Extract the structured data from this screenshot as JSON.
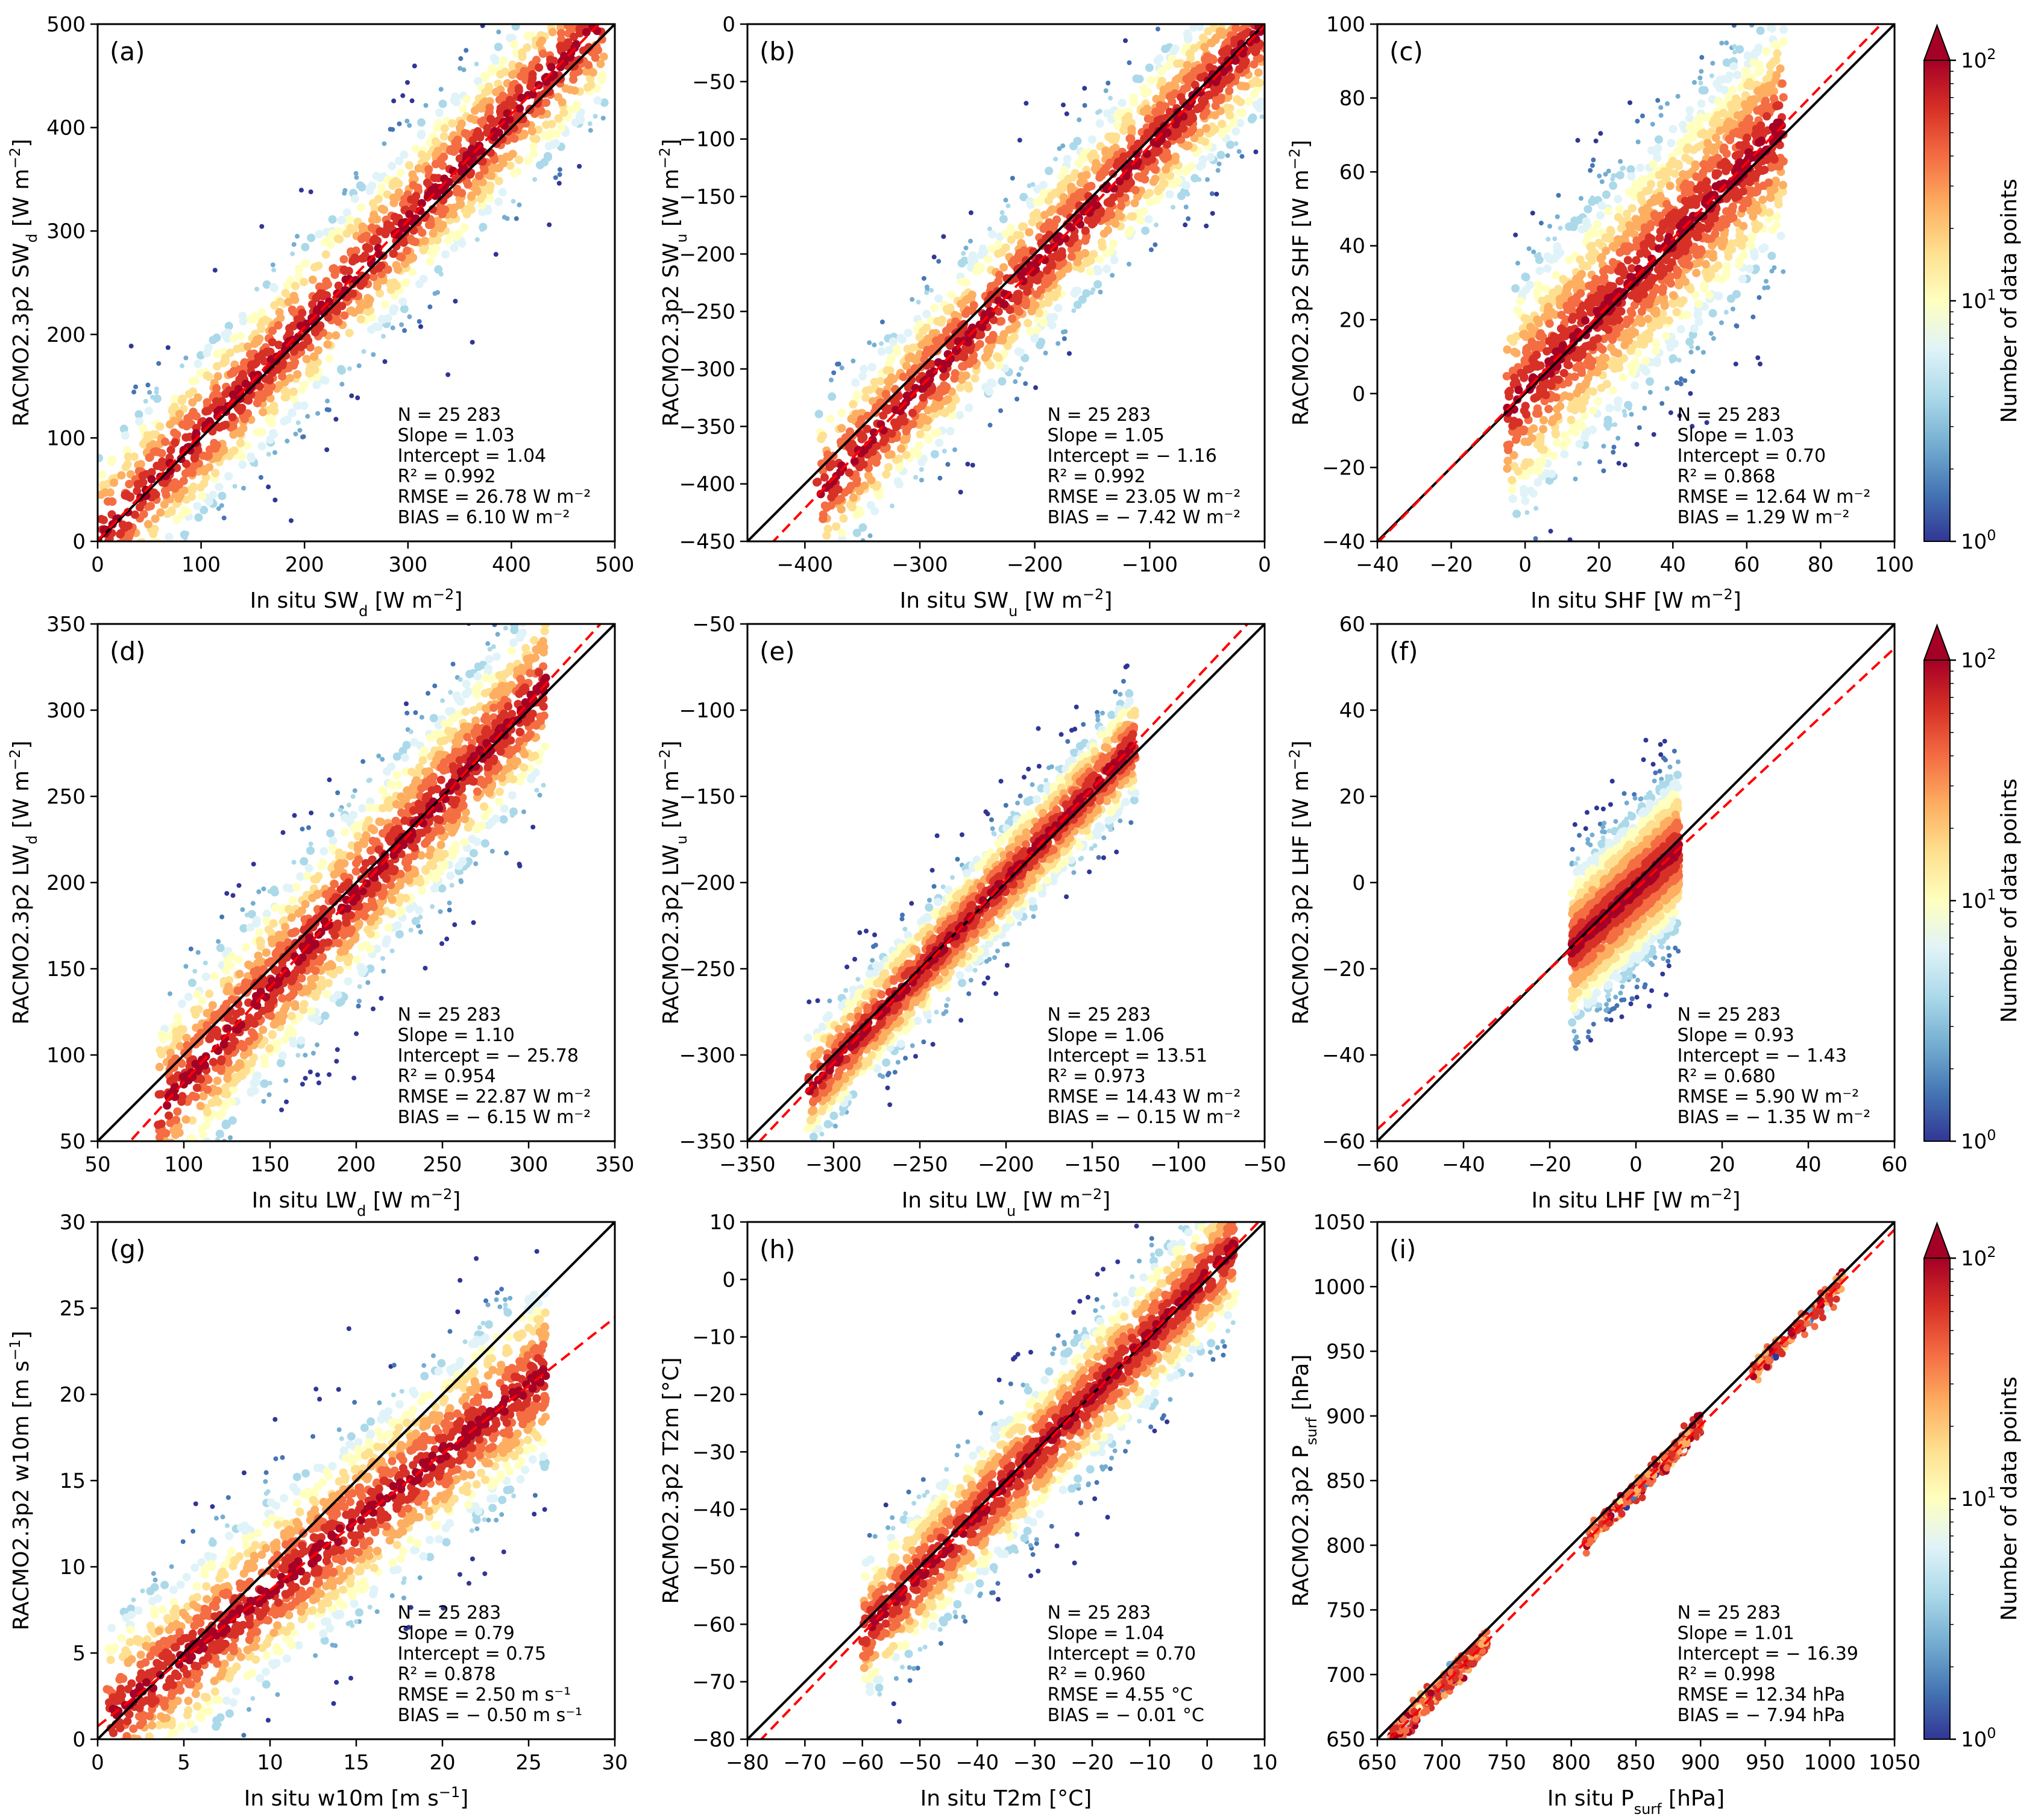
{
  "figure": {
    "y_label_prefix": "RACMO2.3p2",
    "x_label_prefix": "In situ"
  },
  "colorbar": {
    "label": "Number of data points",
    "scale": "log",
    "range": [
      1,
      100
    ],
    "ticks": [
      "10^0",
      "10^1",
      "10^2"
    ],
    "extend": "max",
    "colormap": [
      "#313695",
      "#4575b4",
      "#74add1",
      "#abd9e9",
      "#e0f3f8",
      "#ffffbf",
      "#fee090",
      "#fdae61",
      "#f46d43",
      "#d73027",
      "#a50026"
    ]
  },
  "line_styles": {
    "identity_line_color": "#000000",
    "fit_line_color": "#ff0000"
  },
  "chart_data": [
    {
      "type": "scatter",
      "panel": "(a)",
      "variable": "SWd",
      "xlabel": "In situ SW_d [W m^-2]",
      "ylabel": "RACMO2.3p2 SW_d [W m^-2]",
      "xlim": [
        0,
        500
      ],
      "ylim": [
        0,
        500
      ],
      "xticks": [
        0,
        100,
        200,
        300,
        400,
        500
      ],
      "yticks": [
        0,
        100,
        200,
        300,
        400,
        500
      ],
      "stats": {
        "N": "25 283",
        "slope": 1.03,
        "intercept": 1.04,
        "r2": 0.992,
        "rmse": "26.78 W m^-2",
        "bias": "6.10 W m^-2"
      },
      "stats_lines": [
        "N = 25 283",
        "Slope = 1.03",
        "Intercept = 1.04",
        "R² = 0.992",
        "RMSE = 26.78 W m⁻²",
        "BIAS = 6.10 W m⁻²"
      ],
      "cloud": {
        "xmin": 0,
        "xmax": 490,
        "spread": 45,
        "dense_max": 150
      }
    },
    {
      "type": "scatter",
      "panel": "(b)",
      "variable": "SWu",
      "xlabel": "In situ SW_u [W m^-2]",
      "ylabel": "RACMO2.3p2 SW_u [W m^-2]",
      "xlim": [
        -450,
        0
      ],
      "ylim": [
        -450,
        0
      ],
      "xticks": [
        -400,
        -300,
        -200,
        -100,
        0
      ],
      "yticks": [
        -450,
        -400,
        -350,
        -300,
        -250,
        -200,
        -150,
        -100,
        -50,
        0
      ],
      "stats": {
        "N": "25 283",
        "slope": 1.05,
        "intercept": -1.16,
        "r2": 0.992,
        "rmse": "23.05 W m^-2",
        "bias": "-7.42 W m^-2"
      },
      "stats_lines": [
        "N = 25 283",
        "Slope = 1.05",
        "Intercept = − 1.16",
        "R² = 0.992",
        "RMSE = 23.05 W m⁻²",
        "BIAS = − 7.42 W m⁻²"
      ],
      "cloud": {
        "xmin": -390,
        "xmax": 0,
        "spread": 40,
        "dense_max": -60
      }
    },
    {
      "type": "scatter",
      "panel": "(c)",
      "variable": "SHF",
      "xlabel": "In situ SHF [W m^-2]",
      "ylabel": "RACMO2.3p2 SHF [W m^-2]",
      "xlim": [
        -40,
        100
      ],
      "ylim": [
        -40,
        100
      ],
      "xticks": [
        -40,
        -20,
        0,
        20,
        40,
        60,
        80,
        100
      ],
      "yticks": [
        -40,
        -20,
        0,
        20,
        40,
        60,
        80,
        100
      ],
      "stats": {
        "N": "25 283",
        "slope": 1.03,
        "intercept": 0.7,
        "r2": 0.868,
        "rmse": "12.64 W m^-2",
        "bias": "1.29 W m^-2"
      },
      "stats_lines": [
        "N = 25 283",
        "Slope = 1.03",
        "Intercept = 0.70",
        "R² = 0.868",
        "RMSE = 12.64 W m⁻²",
        "BIAS = 1.29 W m⁻²"
      ],
      "cloud": {
        "xmin": -5,
        "xmax": 70,
        "spread": 18,
        "dense_max": 30
      }
    },
    {
      "type": "scatter",
      "panel": "(d)",
      "variable": "LWd",
      "xlabel": "In situ LW_d [W m^-2]",
      "ylabel": "RACMO2.3p2 LW_d [W m^-2]",
      "xlim": [
        50,
        350
      ],
      "ylim": [
        50,
        350
      ],
      "xticks": [
        50,
        100,
        150,
        200,
        250,
        300,
        350
      ],
      "yticks": [
        50,
        100,
        150,
        200,
        250,
        300,
        350
      ],
      "stats": {
        "N": "25 283",
        "slope": 1.1,
        "intercept": -25.78,
        "r2": 0.954,
        "rmse": "22.87 W m^-2",
        "bias": "-6.15 W m^-2"
      },
      "stats_lines": [
        "N = 25 283",
        "Slope = 1.10",
        "Intercept = − 25.78",
        "R² = 0.954",
        "RMSE = 22.87 W m⁻²",
        "BIAS = − 6.15 W m⁻²"
      ],
      "cloud": {
        "xmin": 85,
        "xmax": 310,
        "spread": 30,
        "dense_max": 300
      }
    },
    {
      "type": "scatter",
      "panel": "(e)",
      "variable": "LWu",
      "xlabel": "In situ LW_u [W m^-2]",
      "ylabel": "RACMO2.3p2 LW_u [W m^-2]",
      "xlim": [
        -350,
        -50
      ],
      "ylim": [
        -350,
        -50
      ],
      "xticks": [
        -350,
        -300,
        -250,
        -200,
        -150,
        -100,
        -50
      ],
      "yticks": [
        -350,
        -300,
        -250,
        -200,
        -150,
        -100,
        -50
      ],
      "stats": {
        "N": "25 283",
        "slope": 1.06,
        "intercept": 13.51,
        "r2": 0.973,
        "rmse": "14.43 W m^-2",
        "bias": "-0.15 W m^-2"
      },
      "stats_lines": [
        "N = 25 283",
        "Slope = 1.06",
        "Intercept = 13.51",
        "R² = 0.973",
        "RMSE = 14.43 W m⁻²",
        "BIAS = − 0.15 W m⁻²"
      ],
      "cloud": {
        "xmin": -315,
        "xmax": -125,
        "spread": 18,
        "dense_max": -170
      }
    },
    {
      "type": "scatter",
      "panel": "(f)",
      "variable": "LHF",
      "xlabel": "In situ LHF [W m^-2]",
      "ylabel": "RACMO2.3p2 LHF [W m^-2]",
      "xlim": [
        -60,
        60
      ],
      "ylim": [
        -60,
        60
      ],
      "xticks": [
        -60,
        -40,
        -20,
        0,
        20,
        40,
        60
      ],
      "yticks": [
        -60,
        -40,
        -20,
        0,
        20,
        40,
        60
      ],
      "stats": {
        "N": "25 283",
        "slope": 0.93,
        "intercept": -1.43,
        "r2": 0.68,
        "rmse": "5.90 W m^-2",
        "bias": "-1.35 W m^-2"
      },
      "stats_lines": [
        "N = 25 283",
        "Slope = 0.93",
        "Intercept = − 1.43",
        "R² = 0.680",
        "RMSE = 5.90 W m⁻²",
        "BIAS = − 1.35 W m⁻²"
      ],
      "cloud": {
        "xmin": -15,
        "xmax": 10,
        "spread": 10,
        "dense_max": 5
      }
    },
    {
      "type": "scatter",
      "panel": "(g)",
      "variable": "w10m",
      "xlabel": "In situ w10m [m s^-1]",
      "ylabel": "RACMO2.3p2 w10m [m s^-1]",
      "xlim": [
        0,
        30
      ],
      "ylim": [
        0,
        30
      ],
      "xticks": [
        0,
        5,
        10,
        15,
        20,
        25,
        30
      ],
      "yticks": [
        0,
        5,
        10,
        15,
        20,
        25,
        30
      ],
      "stats": {
        "N": "25 283",
        "slope": 0.79,
        "intercept": 0.75,
        "r2": 0.878,
        "rmse": "2.50 m s^-1",
        "bias": "-0.50 m s^-1"
      },
      "stats_lines": [
        "N = 25 283",
        "Slope = 0.79",
        "Intercept = 0.75",
        "R² = 0.878",
        "RMSE = 2.50 m s⁻¹",
        "BIAS = − 0.50 m s⁻¹"
      ],
      "cloud": {
        "xmin": 0.5,
        "xmax": 26,
        "spread": 3,
        "dense_max": 11
      }
    },
    {
      "type": "scatter",
      "panel": "(h)",
      "variable": "T2m",
      "xlabel": "In situ T2m [°C]",
      "ylabel": "RACMO2.3p2 T2m [°C]",
      "xlim": [
        -80,
        10
      ],
      "ylim": [
        -80,
        10
      ],
      "xticks": [
        -80,
        -70,
        -60,
        -50,
        -40,
        -30,
        -20,
        -10,
        0,
        10
      ],
      "yticks": [
        -80,
        -70,
        -60,
        -50,
        -40,
        -30,
        -20,
        -10,
        0,
        10
      ],
      "stats": {
        "N": "25 283",
        "slope": 1.04,
        "intercept": 0.7,
        "r2": 0.96,
        "rmse": "4.55 °C",
        "bias": "-0.01 °C"
      },
      "stats_lines": [
        "N = 25 283",
        "Slope = 1.04",
        "Intercept = 0.70",
        "R² = 0.960",
        "RMSE = 4.55 °C",
        "BIAS = − 0.01 °C"
      ],
      "cloud": {
        "xmin": -60,
        "xmax": 5,
        "spread": 7,
        "dense_max": 0
      }
    },
    {
      "type": "scatter",
      "panel": "(i)",
      "variable": "Psurf",
      "xlabel": "In situ P_surf [hPa]",
      "ylabel": "RACMO2.3p2 P_surf [hPa]",
      "xlim": [
        650,
        1050
      ],
      "ylim": [
        650,
        1050
      ],
      "xticks": [
        650,
        700,
        750,
        800,
        850,
        900,
        950,
        1000,
        1050
      ],
      "yticks": [
        650,
        700,
        750,
        800,
        850,
        900,
        950,
        1000,
        1050
      ],
      "stats": {
        "N": "25 283",
        "slope": 1.01,
        "intercept": -16.39,
        "r2": 0.998,
        "rmse": "12.34 hPa",
        "bias": "-7.94 hPa"
      },
      "stats_lines": [
        "N = 25 283",
        "Slope = 1.01",
        "Intercept = − 16.39",
        "R² = 0.998",
        "RMSE = 12.34 hPa",
        "BIAS = − 7.94 hPa"
      ],
      "clusters": [
        [
          660,
          700
        ],
        [
          700,
          735
        ],
        [
          810,
          870
        ],
        [
          870,
          900
        ],
        [
          940,
          1010
        ]
      ]
    }
  ]
}
